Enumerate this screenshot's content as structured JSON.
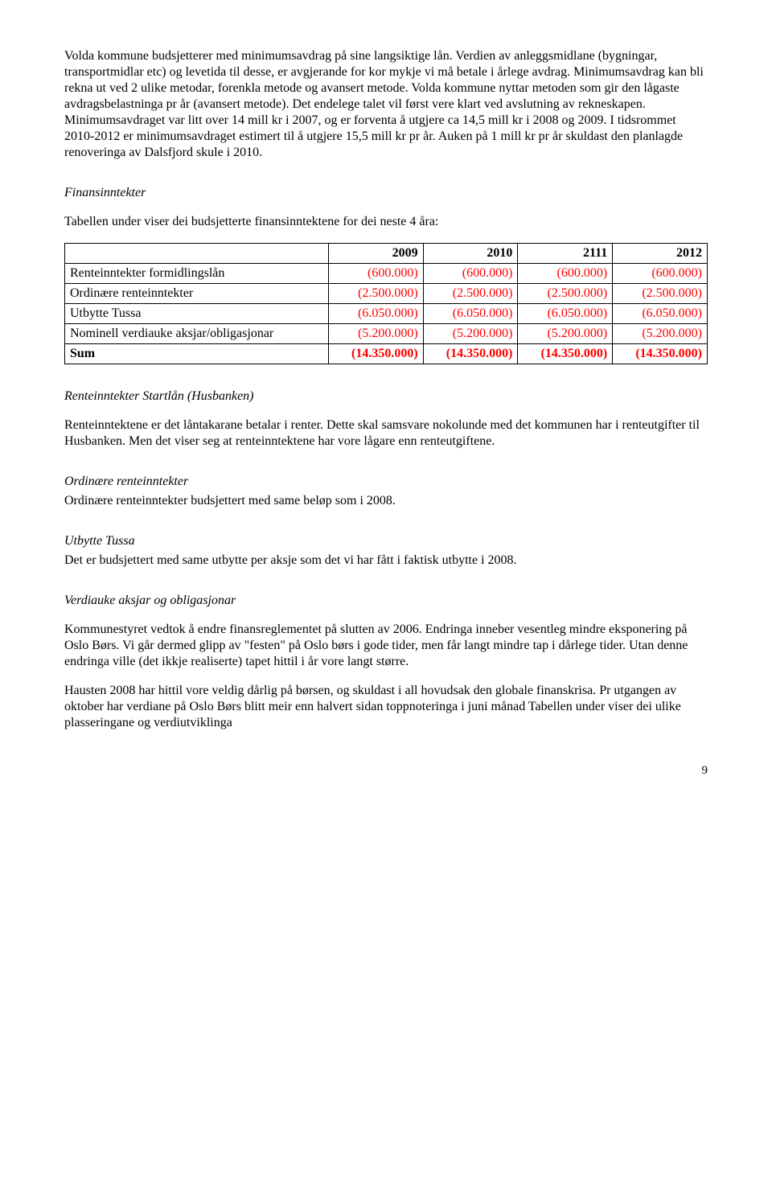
{
  "para1": "Volda kommune budsjetterer med minimumsavdrag på sine langsiktige lån. Verdien av anleggsmidlane (bygningar, transportmidlar etc) og levetida til desse, er avgjerande for kor mykje vi må betale i årlege avdrag. Minimumsavdrag kan bli rekna ut ved 2 ulike metodar, forenkla metode og avansert metode. Volda kommune nyttar metoden som gir den lågaste avdragsbelastninga pr år (avansert metode). Det endelege talet vil først vere klart ved avslutning av rekneskapen. Minimumsavdraget var litt over 14 mill kr i 2007, og er forventa å utgjere ca 14,5 mill kr i 2008 og 2009. I tidsrommet  2010-2012 er minimumsavdraget estimert til å utgjere 15,5 mill kr pr år. Auken på 1 mill kr pr år skuldast den planlagde renoveringa av  Dalsfjord skule i 2010.",
  "headings": {
    "finansinntekter": "Finansinntekter",
    "renteinntekter_startlan": "Renteinntekter Startlån (Husbanken)",
    "ordinare_renteinntekter": "Ordinære renteinntekter",
    "utbytte_tussa": "Utbytte Tussa",
    "verdiauke": "Verdiauke aksjar og obligasjonar"
  },
  "para_table_intro": "Tabellen under viser dei budsjetterte finansinntektene for dei neste 4 åra:",
  "table": {
    "columns": [
      "",
      "2009",
      "2010",
      "2111",
      "2012"
    ],
    "rows": [
      {
        "label": "Renteinntekter formidlingslån",
        "vals": [
          "(600.000)",
          "(600.000)",
          "(600.000)",
          "(600.000)"
        ],
        "bold": false
      },
      {
        "label": "Ordinære renteinntekter",
        "vals": [
          "(2.500.000)",
          "(2.500.000)",
          "(2.500.000)",
          "(2.500.000)"
        ],
        "bold": false
      },
      {
        "label": "Utbytte Tussa",
        "vals": [
          "(6.050.000)",
          "(6.050.000)",
          "(6.050.000)",
          "(6.050.000)"
        ],
        "bold": false
      },
      {
        "label": "Nominell verdiauke aksjar/obligasjonar",
        "vals": [
          "(5.200.000)",
          "(5.200.000)",
          "(5.200.000)",
          "(5.200.000)"
        ],
        "bold": false
      },
      {
        "label": "Sum",
        "vals": [
          "(14.350.000)",
          "(14.350.000)",
          "(14.350.000)",
          "(14.350.000)"
        ],
        "bold": true
      }
    ],
    "value_color": "#ff0000",
    "border_color": "#000000"
  },
  "para_startlan": "Renteinntektene er det låntakarane betalar i renter. Dette skal samsvare nokolunde med det kommunen har i renteutgifter til Husbanken. Men det viser seg at renteinntektene har vore lågare enn renteutgiftene.",
  "para_ordinare": "Ordinære renteinntekter budsjettert med same beløp som i 2008.",
  "para_utbytte": "Det er budsjettert med same utbytte per aksje som det vi har fått i faktisk utbytte i 2008.",
  "para_verdiauke1": "Kommunestyret vedtok å endre finansreglementet på slutten av 2006. Endringa inneber vesentleg mindre eksponering på Oslo Børs. Vi går dermed glipp av \"festen\" på Oslo børs i gode tider, men får langt mindre tap i dårlege tider. Utan denne endringa ville (det ikkje realiserte) tapet hittil i år vore langt større.",
  "para_verdiauke2": "Hausten 2008 har hittil vore veldig dårlig på børsen, og skuldast i all hovudsak den globale finanskrisa. Pr utgangen av oktober har verdiane på Oslo Børs blitt meir enn halvert sidan toppnoteringa i juni månad  Tabellen under viser dei ulike plasseringane og verdiutviklinga",
  "page_number": "9"
}
